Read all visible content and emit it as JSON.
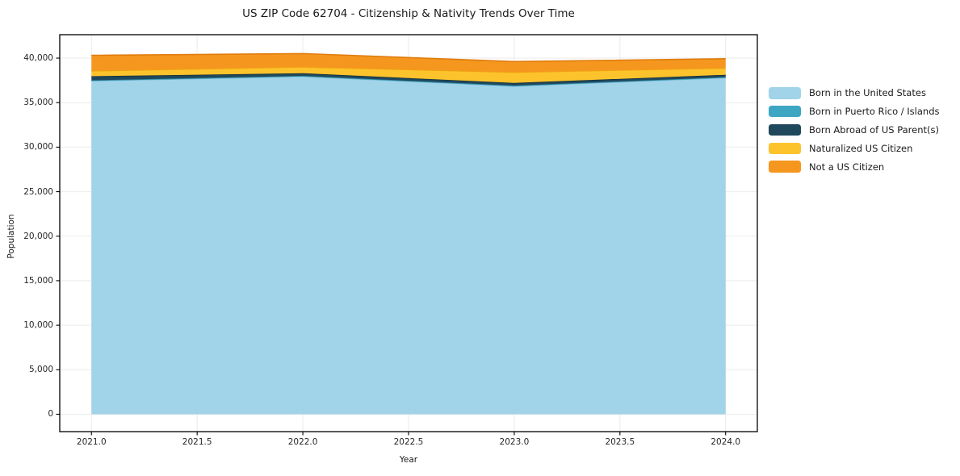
{
  "chart_data": {
    "type": "area",
    "stacked": true,
    "title": "US ZIP Code 62704 - Citizenship & Nativity Trends Over Time",
    "xlabel": "Year",
    "ylabel": "Population",
    "x": [
      2021,
      2022,
      2023,
      2024
    ],
    "series": [
      {
        "name": "Born in the United States",
        "color": "#A1D3E9",
        "edge_color": "#79BCD9",
        "values": [
          37450,
          37950,
          36850,
          37800
        ]
      },
      {
        "name": "Born in Puerto Rico / Islands",
        "color": "#3DA6C2",
        "edge_color": "#2F8BA3",
        "values": [
          60,
          60,
          60,
          60
        ]
      },
      {
        "name": "Born Abroad of US Parent(s)",
        "color": "#20485C",
        "edge_color": "#16323F",
        "values": [
          450,
          300,
          300,
          270
        ]
      },
      {
        "name": "Naturalized US Citizen",
        "color": "#FDC32D",
        "edge_color": "#EFA511",
        "values": [
          600,
          700,
          1200,
          750
        ]
      },
      {
        "name": "Not a US Citizen",
        "color": "#F5971F",
        "edge_color": "#E07C0D",
        "values": [
          1750,
          1500,
          1200,
          1050
        ]
      }
    ],
    "totals": [
      40310,
      40510,
      39610,
      39930
    ],
    "xticks": [
      2021.0,
      2021.5,
      2022.0,
      2022.5,
      2023.0,
      2023.5,
      2024.0
    ],
    "xtick_labels": [
      "2021.0",
      "2021.5",
      "2022.0",
      "2022.5",
      "2023.0",
      "2023.5",
      "2024.0"
    ],
    "yticks": [
      0,
      5000,
      10000,
      15000,
      20000,
      25000,
      30000,
      35000,
      40000
    ],
    "ytick_labels": [
      "0",
      "5,000",
      "10,000",
      "15,000",
      "20,000",
      "25,000",
      "30,000",
      "35,000",
      "40,000"
    ],
    "xlim": [
      2020.85,
      2024.15
    ],
    "ylim": [
      -1950,
      42630
    ],
    "grid": true,
    "grid_color": "#EBEBEB",
    "spine_color": "#000000",
    "legend_position": "right-outside"
  }
}
